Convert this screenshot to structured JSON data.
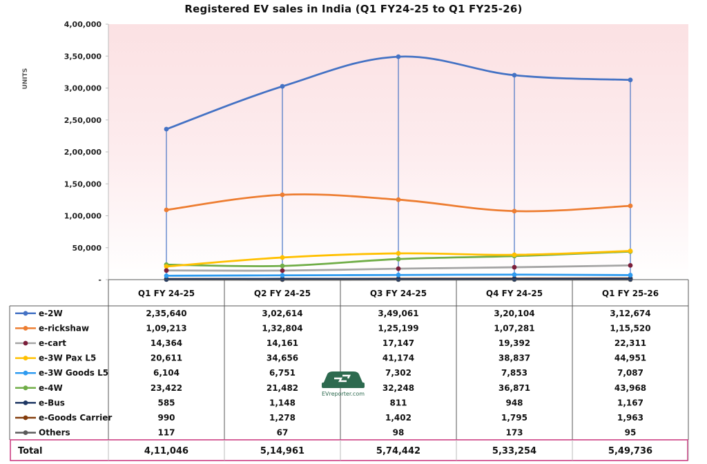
{
  "chart_data": {
    "type": "line",
    "title": "Registered EV sales in India (Q1 FY24-25 to Q1 FY25-26)",
    "ylabel": "UNITS",
    "xlabel": "",
    "ylim": [
      0,
      400000
    ],
    "yticks": [
      {
        "value": 0,
        "label": "-"
      },
      {
        "value": 50000,
        "label": "50,000"
      },
      {
        "value": 100000,
        "label": "1,00,000"
      },
      {
        "value": 150000,
        "label": "1,50,000"
      },
      {
        "value": 200000,
        "label": "2,00,000"
      },
      {
        "value": 250000,
        "label": "2,50,000"
      },
      {
        "value": 300000,
        "label": "3,00,000"
      },
      {
        "value": 350000,
        "label": "3,50,000"
      },
      {
        "value": 400000,
        "label": "4,00,000"
      }
    ],
    "categories": [
      "Q1 FY 24-25",
      "Q2 FY 24-25",
      "Q3 FY 24-25",
      "Q4 FY 24-25",
      "Q1 FY 25-26"
    ],
    "series": [
      {
        "name": "e-2W",
        "color": "#4472c4",
        "values": [
          235640,
          302614,
          349061,
          320104,
          312674
        ],
        "labels": [
          "2,35,640",
          "3,02,614",
          "3,49,061",
          "3,20,104",
          "3,12,674"
        ]
      },
      {
        "name": "e-rickshaw",
        "color": "#ed7d31",
        "values": [
          109213,
          132804,
          125199,
          107281,
          115520
        ],
        "labels": [
          "1,09,213",
          "1,32,804",
          "1,25,199",
          "1,07,281",
          "1,15,520"
        ]
      },
      {
        "name": "e-cart",
        "color": "#a5a5a5",
        "marker_color": "#7b1e3a",
        "values": [
          14364,
          14161,
          17147,
          19392,
          22311
        ],
        "labels": [
          "14,364",
          "14,161",
          "17,147",
          "19,392",
          "22,311"
        ]
      },
      {
        "name": "e-3W Pax L5",
        "color": "#ffc000",
        "values": [
          20611,
          34656,
          41174,
          38837,
          44951
        ],
        "labels": [
          "20,611",
          "34,656",
          "41,174",
          "38,837",
          "44,951"
        ]
      },
      {
        "name": "e-3W Goods L5",
        "color": "#2e9bf0",
        "values": [
          6104,
          6751,
          7302,
          7853,
          7087
        ],
        "labels": [
          "6,104",
          "6,751",
          "7,302",
          "7,853",
          "7,087"
        ]
      },
      {
        "name": "e-4W",
        "color": "#70ad47",
        "values": [
          23422,
          21482,
          32248,
          36871,
          43968
        ],
        "labels": [
          "23,422",
          "21,482",
          "32,248",
          "36,871",
          "43,968"
        ]
      },
      {
        "name": "e-Bus",
        "color": "#1f3864",
        "values": [
          585,
          1148,
          811,
          948,
          1167
        ],
        "labels": [
          "585",
          "1,148",
          "811",
          "948",
          "1,167"
        ]
      },
      {
        "name": "e-Goods Carrier",
        "color": "#843c0c",
        "values": [
          990,
          1278,
          1402,
          1795,
          1963
        ],
        "labels": [
          "990",
          "1,278",
          "1,402",
          "1,795",
          "1,963"
        ]
      },
      {
        "name": "Others",
        "color": "#5a5a5a",
        "values": [
          117,
          67,
          98,
          173,
          95
        ],
        "labels": [
          "117",
          "67",
          "98",
          "173",
          "95"
        ]
      }
    ],
    "total": {
      "name": "Total",
      "values": [
        411046,
        514961,
        574442,
        533254,
        549736
      ],
      "labels": [
        "4,11,046",
        "5,14,961",
        "5,74,442",
        "5,33,254",
        "5,49,736"
      ]
    },
    "grid": false,
    "legend": "data-table-left",
    "colors": {
      "plot_gradient_top": "#fbe1e3",
      "plot_gradient_bottom": "#ffffff",
      "drop_lines": "#4472c4",
      "total_border": "#c9307a"
    }
  },
  "logo": {
    "text": "EVreporter.com"
  }
}
